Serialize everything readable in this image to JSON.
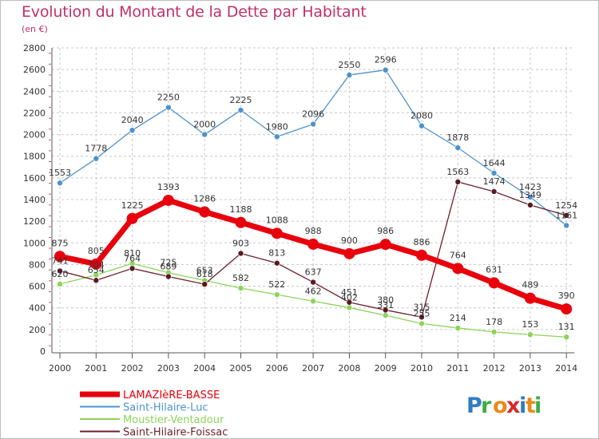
{
  "chart_data": {
    "type": "line",
    "title": "Evolution du Montant de la Dette par Habitant",
    "unit_label": "(en €)",
    "categories": [
      "2000",
      "2001",
      "2002",
      "2003",
      "2004",
      "2005",
      "2006",
      "2007",
      "2008",
      "2009",
      "2010",
      "2011",
      "2012",
      "2013",
      "2014"
    ],
    "ylim": [
      0,
      2800
    ],
    "yticks": [
      0,
      200,
      400,
      600,
      800,
      1000,
      1200,
      1400,
      1600,
      1800,
      2000,
      2200,
      2400,
      2600,
      2800
    ],
    "grid": true,
    "legend_position": "bottom-left",
    "series": [
      {
        "name": "LAMAZIèRE-BASSE",
        "color": "#e8000c",
        "values": [
          875,
          805,
          1225,
          1393,
          1286,
          1188,
          1088,
          988,
          900,
          986,
          886,
          764,
          631,
          489,
          390
        ]
      },
      {
        "name": "Saint-Hilaire-Luc",
        "color": "#4d92cc",
        "values": [
          1553,
          1778,
          2040,
          2250,
          2000,
          2225,
          1980,
          2096,
          2550,
          2596,
          2080,
          1878,
          1644,
          1423,
          1161
        ]
      },
      {
        "name": "Moustier-Ventadour",
        "color": "#8cd359",
        "values": [
          620,
          704,
          810,
          725,
          653,
          582,
          522,
          462,
          402,
          331,
          255,
          214,
          178,
          153,
          131
        ]
      },
      {
        "name": "Saint-Hilaire-Foissac",
        "color": "#6b1f2a",
        "values": [
          741,
          654,
          764,
          689,
          618,
          903,
          813,
          637,
          451,
          380,
          315,
          1563,
          1474,
          1349,
          1254
        ]
      }
    ]
  },
  "logo": {
    "text": "Proxiti",
    "letter_colors": [
      "#2f7cc1",
      "#3cae4a",
      "#e98a1b",
      "#d72a2a",
      "#2f7cc1",
      "#e98a1b",
      "#3cae4a"
    ]
  }
}
